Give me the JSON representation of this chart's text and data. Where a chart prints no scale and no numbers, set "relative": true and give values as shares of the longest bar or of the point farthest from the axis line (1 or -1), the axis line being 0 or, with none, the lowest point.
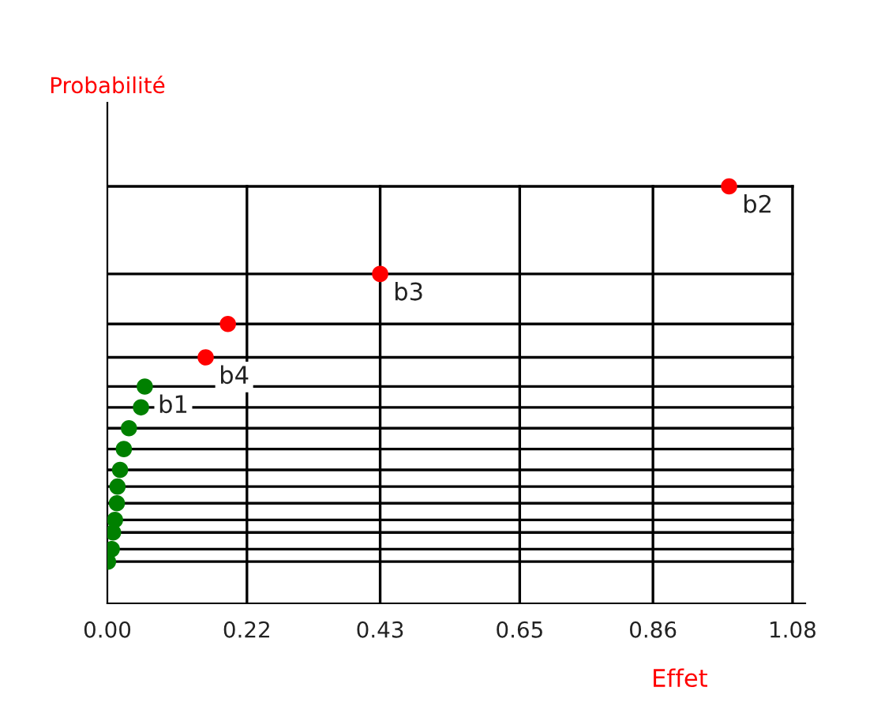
{
  "chart_data": {
    "type": "scatter",
    "xlabel": "Effet",
    "ylabel": "Probabilité",
    "relative": true,
    "xlim": [
      0,
      1.1
    ],
    "xticks": [
      {
        "value": 0,
        "label": "0.00"
      },
      0.22,
      0.43,
      0.65,
      0.86,
      1.08
    ],
    "grid": true,
    "marker": "circle",
    "legend": false,
    "series": [
      {
        "color": "#ff0000",
        "x": [
          0.98,
          0.43,
          0.19,
          0.155
        ],
        "values": [
          1.0,
          0.79,
          0.67,
          0.59
        ]
      },
      {
        "color": "#008000",
        "x": [
          0.059,
          0.053,
          0.034,
          0.026,
          0.02,
          0.016,
          0.015,
          0.012,
          0.009,
          0.007,
          0.001
        ],
        "values": [
          0.52,
          0.47,
          0.42,
          0.37,
          0.32,
          0.28,
          0.24,
          0.2,
          0.17,
          0.13,
          0.1
        ]
      }
    ],
    "annotations": [
      {
        "text": "b1",
        "x": 0.059,
        "y": 0.52
      },
      {
        "text": "b4",
        "x": 0.155,
        "y": 0.59
      },
      {
        "text": "b3",
        "x": 0.43,
        "y": 0.79
      },
      {
        "text": "b2",
        "x": 0.98,
        "y": 1.0
      }
    ]
  }
}
